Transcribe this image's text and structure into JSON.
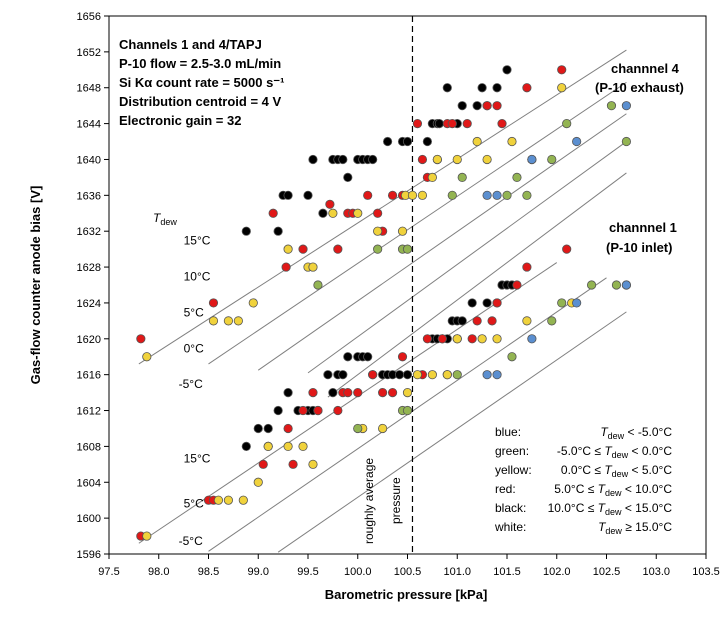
{
  "chart_data": {
    "type": "scatter",
    "xlabel": "Barometric pressure [kPa]",
    "ylabel": "Gas-flow counter anode bias [V]",
    "xlim": [
      97.5,
      103.5
    ],
    "ylim": [
      1596,
      1656
    ],
    "xticks": [
      "97.5",
      "98.0",
      "98.5",
      "99.0",
      "99.5",
      "100.0",
      "100.5",
      "101.0",
      "101.5",
      "102.0",
      "102.5",
      "103.0",
      "103.5"
    ],
    "yticks": [
      "1596",
      "1600",
      "1604",
      "1608",
      "1612",
      "1616",
      "1620",
      "1624",
      "1628",
      "1632",
      "1636",
      "1640",
      "1644",
      "1648",
      "1652",
      "1656"
    ],
    "info_lines": [
      "Channels 1 and 4/TAPJ",
      "P-10 flow = 2.5-3.0 mL/min",
      "Si Kα count rate = 5000 s⁻¹",
      "Distribution centroid = 4 V",
      "Electronic gain = 32"
    ],
    "vline": {
      "x": 100.55,
      "label_line1": "roughly average",
      "label_line2": "pressure"
    },
    "group_labels": {
      "ch4_line1": "channnel 4",
      "ch4_line2": "(P-10 exhaust)",
      "ch1_line1": "channnel 1",
      "ch1_line2": "(P-10 inlet)"
    },
    "tdew_label": {
      "T": "T",
      "sub": "dew"
    },
    "isolines": [
      {
        "label": "15°C",
        "group": "upper",
        "x1": 97.8,
        "y1": 1617.2,
        "x2": 102.7,
        "y2": 1652.2,
        "lx": 98.25,
        "ly": 1630.5
      },
      {
        "label": "10°C",
        "group": "upper",
        "x1": 98.5,
        "y1": 1617.2,
        "x2": 102.7,
        "y2": 1648.6,
        "lx": 98.25,
        "ly": 1626.5
      },
      {
        "label": "5°C",
        "group": "upper",
        "x1": 99.0,
        "y1": 1616.5,
        "x2": 102.7,
        "y2": 1645.1,
        "lx": 98.25,
        "ly": 1622.5
      },
      {
        "label": "0°C",
        "group": "upper",
        "x1": 99.5,
        "y1": 1616.2,
        "x2": 102.7,
        "y2": 1642.0,
        "lx": 98.25,
        "ly": 1618.5
      },
      {
        "label": "-5°C",
        "group": "upper",
        "x1": 99.7,
        "y1": 1613.5,
        "x2": 102.7,
        "y2": 1638.5,
        "lx": 98.2,
        "ly": 1614.5
      },
      {
        "label": "15°C",
        "group": "lower",
        "x1": 97.8,
        "y1": 1597.2,
        "x2": 102.0,
        "y2": 1628.5,
        "lx": 98.25,
        "ly": 1606.2
      },
      {
        "label": "5°C",
        "group": "lower",
        "x1": 98.5,
        "y1": 1596.3,
        "x2": 102.5,
        "y2": 1626.8,
        "lx": 98.25,
        "ly": 1601.2
      },
      {
        "label": "-5°C",
        "group": "lower",
        "x1": 99.2,
        "y1": 1596.2,
        "x2": 102.7,
        "y2": 1623.0,
        "lx": 98.2,
        "ly": 1597.0
      }
    ],
    "legend": [
      {
        "name": "blue:",
        "color": "#5b8fd0",
        "cond_pre": "",
        "cond_post": " < -5.0°C"
      },
      {
        "name": "green:",
        "color": "#93b452",
        "cond_pre": "-5.0°C ≤ ",
        "cond_post": " < 0.0°C"
      },
      {
        "name": "yellow:",
        "color": "#f0d23c",
        "cond_pre": "0.0°C ≤ ",
        "cond_post": " < 5.0°C"
      },
      {
        "name": "red:",
        "color": "#e01818",
        "cond_pre": "5.0°C ≤ ",
        "cond_post": " < 10.0°C"
      },
      {
        "name": "black:",
        "color": "#000000",
        "cond_pre": "10.0°C ≤ ",
        "cond_post": " < 15.0°C"
      },
      {
        "name": "white:",
        "color": "#ffffff",
        "cond_pre": "",
        "cond_post": " ≥ 15.0°C"
      }
    ],
    "series": [
      {
        "name": "black",
        "color": "#000000",
        "points": [
          [
            98.88,
            1632
          ],
          [
            99.2,
            1632
          ],
          [
            99.25,
            1636
          ],
          [
            99.3,
            1636
          ],
          [
            99.5,
            1636
          ],
          [
            99.55,
            1640
          ],
          [
            99.65,
            1634
          ],
          [
            99.75,
            1640
          ],
          [
            99.8,
            1640
          ],
          [
            99.85,
            1640
          ],
          [
            99.9,
            1638
          ],
          [
            100.0,
            1640
          ],
          [
            100.05,
            1640
          ],
          [
            100.1,
            1640
          ],
          [
            100.15,
            1640
          ],
          [
            100.3,
            1642
          ],
          [
            100.45,
            1642
          ],
          [
            100.5,
            1642
          ],
          [
            100.7,
            1642
          ],
          [
            100.75,
            1644
          ],
          [
            100.8,
            1644
          ],
          [
            100.82,
            1644
          ],
          [
            100.9,
            1648
          ],
          [
            101.0,
            1644
          ],
          [
            101.05,
            1646
          ],
          [
            101.2,
            1646
          ],
          [
            101.25,
            1648
          ],
          [
            101.3,
            1646
          ],
          [
            101.4,
            1648
          ],
          [
            101.5,
            1650
          ],
          [
            98.88,
            1608
          ],
          [
            99.0,
            1610
          ],
          [
            99.1,
            1610
          ],
          [
            99.2,
            1612
          ],
          [
            99.3,
            1614
          ],
          [
            99.4,
            1612
          ],
          [
            99.5,
            1612
          ],
          [
            99.55,
            1612
          ],
          [
            99.6,
            1612
          ],
          [
            99.7,
            1616
          ],
          [
            99.75,
            1614
          ],
          [
            99.8,
            1616
          ],
          [
            99.85,
            1616
          ],
          [
            99.9,
            1618
          ],
          [
            100.0,
            1618
          ],
          [
            100.05,
            1618
          ],
          [
            100.1,
            1618
          ],
          [
            100.15,
            1616
          ],
          [
            100.25,
            1616
          ],
          [
            100.3,
            1616
          ],
          [
            100.35,
            1616
          ],
          [
            100.42,
            1616
          ],
          [
            100.5,
            1616
          ],
          [
            100.75,
            1620
          ],
          [
            100.8,
            1620
          ],
          [
            100.85,
            1620
          ],
          [
            100.9,
            1620
          ],
          [
            100.95,
            1622
          ],
          [
            101.0,
            1622
          ],
          [
            101.05,
            1622
          ],
          [
            101.15,
            1624
          ],
          [
            101.3,
            1624
          ],
          [
            101.4,
            1624
          ],
          [
            101.45,
            1626
          ],
          [
            101.5,
            1626
          ],
          [
            101.55,
            1626
          ]
        ]
      },
      {
        "name": "red",
        "color": "#e01818",
        "points": [
          [
            97.82,
            1620
          ],
          [
            98.55,
            1624
          ],
          [
            99.15,
            1634
          ],
          [
            99.28,
            1628
          ],
          [
            99.45,
            1630
          ],
          [
            99.72,
            1635
          ],
          [
            99.8,
            1630
          ],
          [
            99.9,
            1634
          ],
          [
            99.95,
            1634
          ],
          [
            100.1,
            1636
          ],
          [
            100.2,
            1634
          ],
          [
            100.25,
            1632
          ],
          [
            100.35,
            1636
          ],
          [
            100.45,
            1636
          ],
          [
            100.6,
            1644
          ],
          [
            100.65,
            1640
          ],
          [
            100.7,
            1638
          ],
          [
            100.8,
            1640
          ],
          [
            100.9,
            1644
          ],
          [
            100.95,
            1644
          ],
          [
            101.1,
            1644
          ],
          [
            101.3,
            1646
          ],
          [
            101.4,
            1646
          ],
          [
            101.45,
            1644
          ],
          [
            101.7,
            1648
          ],
          [
            102.05,
            1650
          ],
          [
            97.82,
            1598
          ],
          [
            98.5,
            1602
          ],
          [
            98.55,
            1602
          ],
          [
            99.05,
            1606
          ],
          [
            99.1,
            1608
          ],
          [
            99.3,
            1610
          ],
          [
            99.35,
            1606
          ],
          [
            99.45,
            1612
          ],
          [
            99.55,
            1614
          ],
          [
            99.6,
            1612
          ],
          [
            99.8,
            1612
          ],
          [
            99.85,
            1614
          ],
          [
            99.9,
            1614
          ],
          [
            100.0,
            1614
          ],
          [
            100.15,
            1616
          ],
          [
            100.25,
            1614
          ],
          [
            100.35,
            1614
          ],
          [
            100.45,
            1618
          ],
          [
            100.65,
            1616
          ],
          [
            100.7,
            1620
          ],
          [
            100.85,
            1620
          ],
          [
            100.9,
            1616
          ],
          [
            101.0,
            1620
          ],
          [
            101.15,
            1620
          ],
          [
            101.2,
            1622
          ],
          [
            101.35,
            1622
          ],
          [
            101.4,
            1624
          ],
          [
            101.6,
            1626
          ],
          [
            101.7,
            1628
          ],
          [
            102.1,
            1630
          ]
        ]
      },
      {
        "name": "yellow",
        "color": "#f0d23c",
        "points": [
          [
            97.88,
            1618
          ],
          [
            98.55,
            1622
          ],
          [
            98.7,
            1622
          ],
          [
            98.8,
            1622
          ],
          [
            98.95,
            1624
          ],
          [
            99.3,
            1630
          ],
          [
            99.5,
            1628
          ],
          [
            99.55,
            1628
          ],
          [
            99.75,
            1634
          ],
          [
            100.0,
            1634
          ],
          [
            100.2,
            1632
          ],
          [
            100.45,
            1632
          ],
          [
            100.48,
            1636
          ],
          [
            100.55,
            1636
          ],
          [
            100.65,
            1636
          ],
          [
            100.75,
            1638
          ],
          [
            100.8,
            1640
          ],
          [
            101.0,
            1640
          ],
          [
            101.2,
            1642
          ],
          [
            101.3,
            1640
          ],
          [
            101.55,
            1642
          ],
          [
            102.05,
            1648
          ],
          [
            97.88,
            1598
          ],
          [
            98.6,
            1602
          ],
          [
            98.7,
            1602
          ],
          [
            98.85,
            1602
          ],
          [
            99.0,
            1604
          ],
          [
            99.1,
            1608
          ],
          [
            99.3,
            1608
          ],
          [
            99.45,
            1608
          ],
          [
            99.55,
            1606
          ],
          [
            100.05,
            1610
          ],
          [
            100.25,
            1610
          ],
          [
            100.5,
            1614
          ],
          [
            100.6,
            1616
          ],
          [
            100.75,
            1616
          ],
          [
            100.9,
            1616
          ],
          [
            101.0,
            1620
          ],
          [
            101.25,
            1620
          ],
          [
            101.4,
            1620
          ],
          [
            101.7,
            1622
          ],
          [
            102.15,
            1624
          ]
        ]
      },
      {
        "name": "green",
        "color": "#93b452",
        "points": [
          [
            99.6,
            1626
          ],
          [
            100.2,
            1630
          ],
          [
            100.45,
            1630
          ],
          [
            100.5,
            1630
          ],
          [
            100.95,
            1636
          ],
          [
            101.05,
            1638
          ],
          [
            101.5,
            1636
          ],
          [
            101.6,
            1638
          ],
          [
            101.7,
            1636
          ],
          [
            101.75,
            1640
          ],
          [
            101.95,
            1640
          ],
          [
            102.1,
            1644
          ],
          [
            102.55,
            1646
          ],
          [
            102.7,
            1642
          ],
          [
            100.0,
            1610
          ],
          [
            100.45,
            1612
          ],
          [
            100.5,
            1612
          ],
          [
            101.0,
            1616
          ],
          [
            101.55,
            1618
          ],
          [
            101.95,
            1622
          ],
          [
            102.05,
            1624
          ],
          [
            102.35,
            1626
          ],
          [
            102.6,
            1626
          ],
          [
            102.7,
            1626
          ]
        ]
      },
      {
        "name": "blue",
        "color": "#5b8fd0",
        "points": [
          [
            101.3,
            1636
          ],
          [
            101.4,
            1636
          ],
          [
            101.75,
            1640
          ],
          [
            102.2,
            1642
          ],
          [
            102.7,
            1646
          ],
          [
            101.3,
            1616
          ],
          [
            101.4,
            1616
          ],
          [
            101.75,
            1620
          ],
          [
            102.2,
            1624
          ],
          [
            102.7,
            1626
          ]
        ]
      }
    ]
  }
}
